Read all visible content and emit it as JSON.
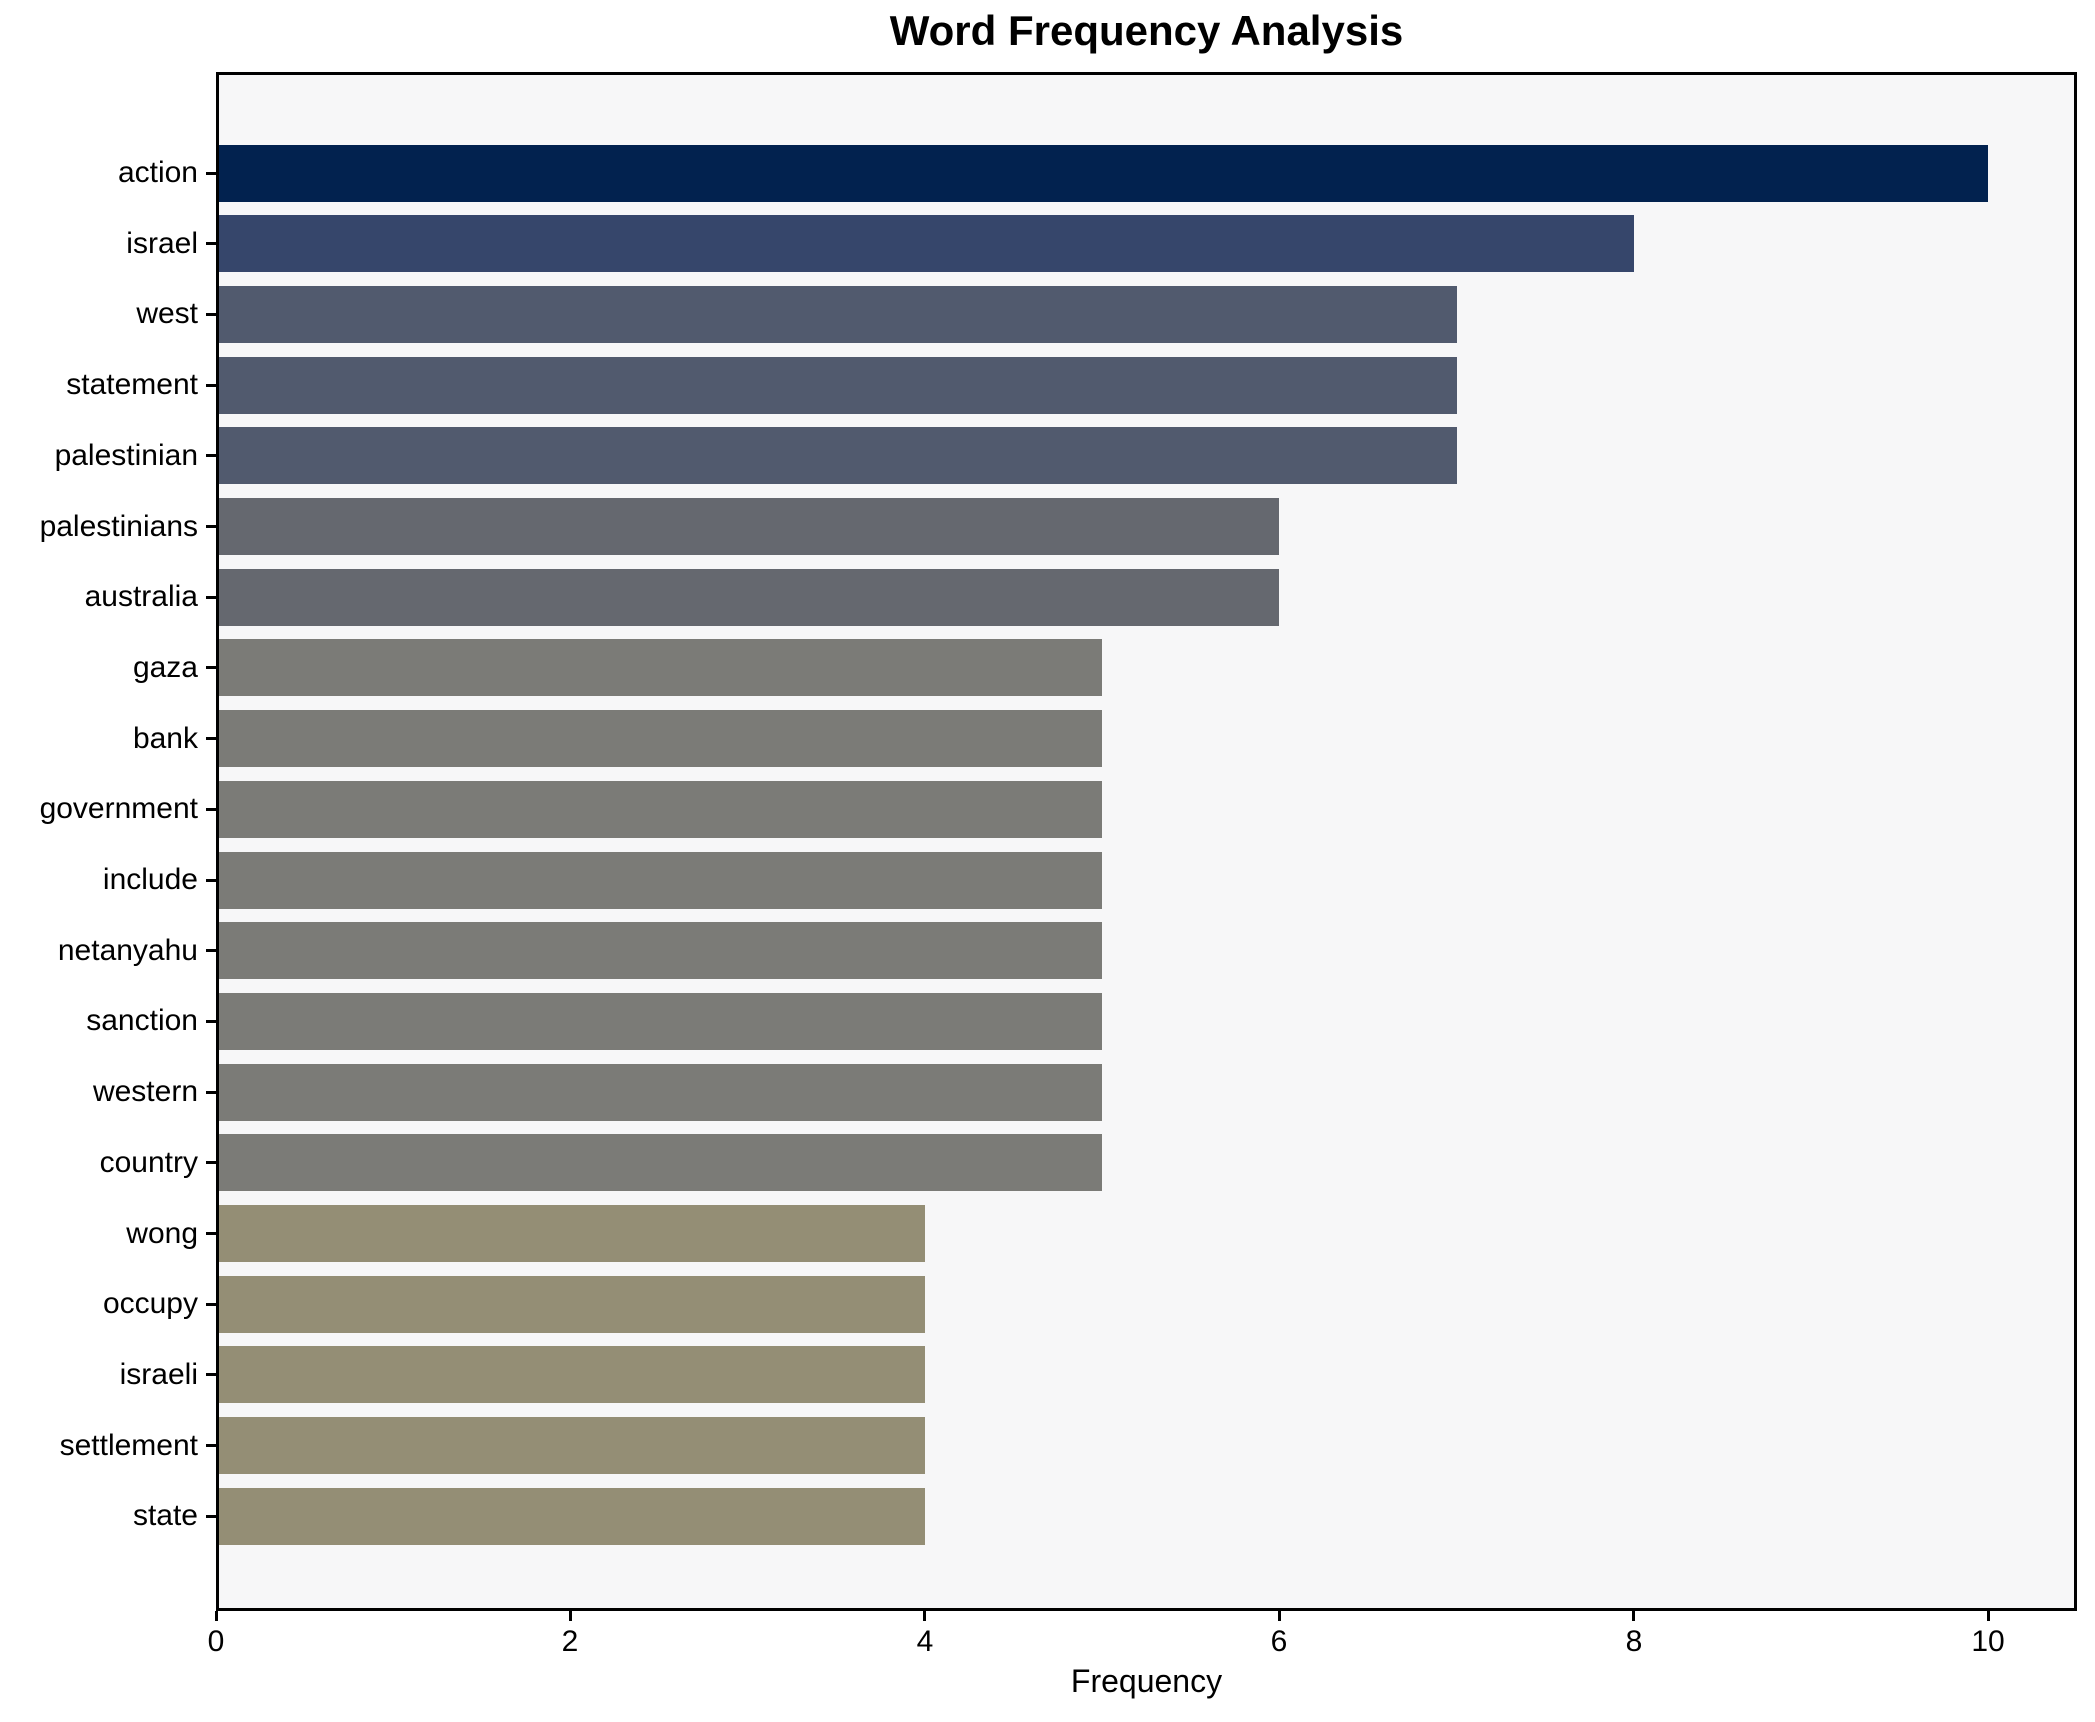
{
  "title": "Word Frequency Analysis",
  "xlabel": "Frequency",
  "chart_data": {
    "type": "bar",
    "orientation": "horizontal",
    "title": "Word Frequency Analysis",
    "xlabel": "Frequency",
    "ylabel": "",
    "categories": [
      "action",
      "israel",
      "west",
      "statement",
      "palestinian",
      "palestinians",
      "australia",
      "gaza",
      "bank",
      "government",
      "include",
      "netanyahu",
      "sanction",
      "western",
      "country",
      "wong",
      "occupy",
      "israeli",
      "settlement",
      "state"
    ],
    "values": [
      10,
      8,
      7,
      7,
      7,
      6,
      6,
      5,
      5,
      5,
      5,
      5,
      5,
      5,
      5,
      4,
      4,
      4,
      4,
      4
    ],
    "bar_colors": [
      "#02224f",
      "#36466b",
      "#515a6e",
      "#515a6e",
      "#515a6e",
      "#65686f",
      "#65686f",
      "#7b7b77",
      "#7b7b77",
      "#7b7b77",
      "#7b7b77",
      "#7b7b77",
      "#7b7b77",
      "#7b7b77",
      "#7b7b77",
      "#948e75",
      "#948e75",
      "#948e75",
      "#948e75",
      "#948e75"
    ],
    "x_ticks": [
      0,
      2,
      4,
      6,
      8,
      10
    ],
    "xlim": [
      0,
      10.5
    ],
    "grid": false,
    "legend": null,
    "bar_height_fraction": 0.8,
    "colors": {
      "value_10": "#02224f",
      "value_8": "#36466b",
      "value_7": "#515a6e",
      "value_6": "#65686f",
      "value_5": "#7b7b77",
      "value_4": "#948e75",
      "plot_background": "#f7f7f8",
      "figure_background": "#ffffff",
      "axis_line": "#000000",
      "text": "#000000"
    }
  }
}
